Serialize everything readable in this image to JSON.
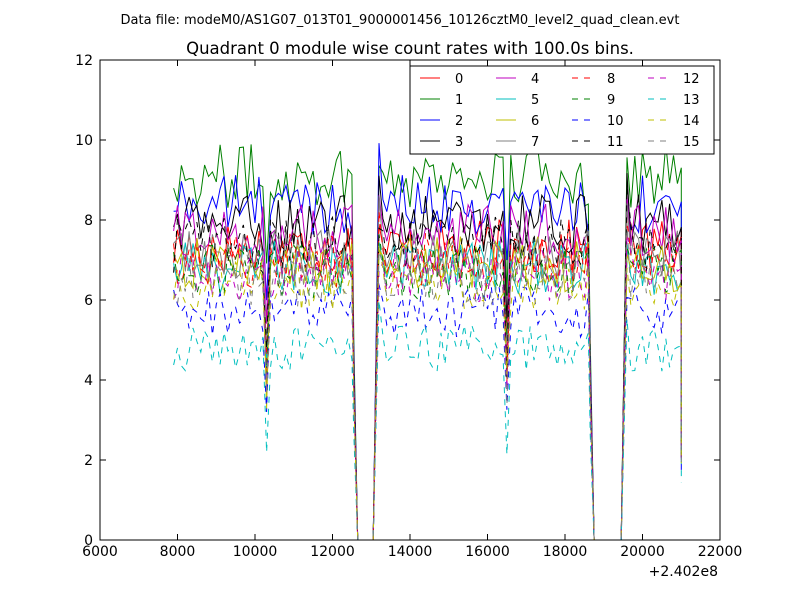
{
  "header": {
    "data_file": "Data file: modeM0/AS1G07_013T01_9000001456_10126cztM0_level2_quad_clean.evt"
  },
  "chart_data": {
    "type": "line",
    "title": "Quadrant 0 module wise count rates with 100.0s bins.",
    "xlabel": "",
    "ylabel": "",
    "xlim": [
      6000,
      22000
    ],
    "ylim": [
      0,
      12
    ],
    "x_offset_label": "+2.402e8",
    "x_ticks": [
      6000,
      8000,
      10000,
      12000,
      14000,
      16000,
      18000,
      20000,
      22000
    ],
    "x_tick_labels": [
      "6000",
      "8000",
      "10000",
      "12000",
      "14000",
      "16000",
      "18000",
      "20000",
      "22000"
    ],
    "y_ticks": [
      0,
      2,
      4,
      6,
      8,
      10,
      12
    ],
    "y_tick_labels": [
      "0",
      "2",
      "4",
      "6",
      "8",
      "10",
      "12"
    ],
    "grid": false,
    "legend": "top-right",
    "segments": [
      [
        7900,
        12500
      ],
      [
        13200,
        18600
      ],
      [
        19600,
        21000
      ]
    ],
    "gap_drops": [
      [
        12500,
        12650,
        13050,
        13200
      ],
      [
        18600,
        18750,
        19450,
        19600
      ]
    ],
    "dips": [
      10300,
      16500
    ],
    "series": [
      {
        "name": "0",
        "color": "#ff0000",
        "dash": "solid",
        "level": 7.3
      },
      {
        "name": "1",
        "color": "#008000",
        "dash": "solid",
        "level": 9.1
      },
      {
        "name": "2",
        "color": "#0000ff",
        "dash": "solid",
        "level": 8.4
      },
      {
        "name": "3",
        "color": "#000000",
        "dash": "solid",
        "level": 7.9
      },
      {
        "name": "4",
        "color": "#bf00bf",
        "dash": "solid",
        "level": 7.7
      },
      {
        "name": "5",
        "color": "#00bfbf",
        "dash": "solid",
        "level": 6.8
      },
      {
        "name": "6",
        "color": "#bfbf00",
        "dash": "solid",
        "level": 6.9
      },
      {
        "name": "7",
        "color": "#808080",
        "dash": "solid",
        "level": 7.1
      },
      {
        "name": "8",
        "color": "#ff0000",
        "dash": "dashed",
        "level": 7.0
      },
      {
        "name": "9",
        "color": "#008000",
        "dash": "dashed",
        "level": 6.7
      },
      {
        "name": "10",
        "color": "#0000ff",
        "dash": "dashed",
        "level": 5.7
      },
      {
        "name": "11",
        "color": "#000000",
        "dash": "dashed",
        "level": 7.4
      },
      {
        "name": "12",
        "color": "#bf00bf",
        "dash": "dashed",
        "level": 6.6
      },
      {
        "name": "13",
        "color": "#00bfbf",
        "dash": "dashed",
        "level": 4.8
      },
      {
        "name": "14",
        "color": "#bfbf00",
        "dash": "dashed",
        "level": 6.4
      },
      {
        "name": "15",
        "color": "#808080",
        "dash": "dashed",
        "level": 6.5
      }
    ]
  }
}
